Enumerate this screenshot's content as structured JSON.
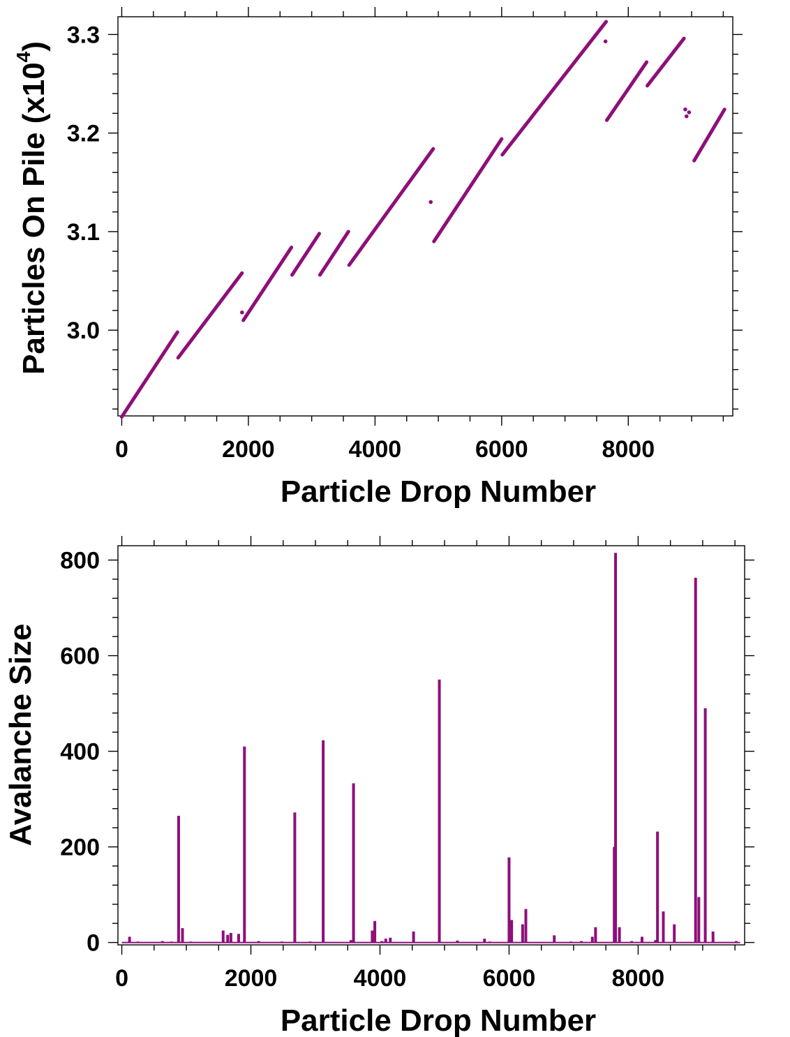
{
  "colors": {
    "series": "#8e0f7a",
    "axis": "#000000",
    "background": "#ffffff"
  },
  "chart_data": [
    {
      "type": "scatter",
      "xlabel": "Particle Drop Number",
      "ylabel": "Particles On Pile (x10",
      "ylabel_exponent": "4",
      "ylabel_close": ")",
      "xlim": [
        -60,
        9650
      ],
      "ylim": [
        2.913,
        3.318
      ],
      "grid": false,
      "x_ticks": [
        0,
        2000,
        4000,
        6000,
        8000
      ],
      "x_tick_labels": [
        "0",
        "2000",
        "4000",
        "6000",
        "8000"
      ],
      "y_ticks": [
        3.0,
        3.1,
        3.2,
        3.3
      ],
      "y_tick_labels": [
        "3.0",
        "3.1",
        "3.2",
        "3.3"
      ],
      "series": [
        {
          "segments": [
            [
              [
                0,
                2.912
              ],
              [
                880,
                2.998
              ]
            ],
            [
              [
                890,
                2.972
              ],
              [
                1900,
                3.058
              ]
            ],
            [
              [
                1920,
                3.01
              ],
              [
                2680,
                3.084
              ]
            ],
            [
              [
                2690,
                3.056
              ],
              [
                3120,
                3.098
              ]
            ],
            [
              [
                3130,
                3.056
              ],
              [
                3580,
                3.1
              ]
            ],
            [
              [
                3590,
                3.066
              ],
              [
                4920,
                3.184
              ]
            ],
            [
              [
                4930,
                3.09
              ],
              [
                6000,
                3.194
              ]
            ],
            [
              [
                6010,
                3.178
              ],
              [
                7650,
                3.313
              ]
            ],
            [
              [
                7660,
                3.213
              ],
              [
                8290,
                3.272
              ]
            ],
            [
              [
                8300,
                3.248
              ],
              [
                8880,
                3.296
              ]
            ],
            [
              [
                9040,
                3.172
              ],
              [
                9520,
                3.224
              ]
            ]
          ],
          "points": [
            [
              1900,
              3.018
            ],
            [
              4880,
              3.13
            ],
            [
              7640,
              3.293
            ],
            [
              8900,
              3.224
            ],
            [
              8920,
              3.217
            ],
            [
              8960,
              3.221
            ]
          ]
        }
      ]
    },
    {
      "type": "bar",
      "xlabel": "Particle Drop Number",
      "ylabel": "Avalanche Size",
      "xlim": [
        -60,
        9650
      ],
      "ylim": [
        -5,
        830
      ],
      "grid": false,
      "x_ticks": [
        0,
        2000,
        4000,
        6000,
        8000
      ],
      "x_tick_labels": [
        "0",
        "2000",
        "4000",
        "6000",
        "8000"
      ],
      "y_ticks": [
        0,
        200,
        400,
        600,
        800
      ],
      "y_tick_labels": [
        "0",
        "200",
        "400",
        "600",
        "800"
      ],
      "series": [
        {
          "x": [
            120,
            250,
            630,
            770,
            880,
            940,
            1070,
            1570,
            1640,
            1690,
            1810,
            1900,
            2120,
            2480,
            2680,
            2920,
            3120,
            3550,
            3590,
            3880,
            3920,
            4030,
            4090,
            4160,
            4520,
            4920,
            5200,
            5620,
            5700,
            6000,
            6040,
            6210,
            6260,
            6700,
            6960,
            7120,
            7290,
            7340,
            7630,
            7650,
            7710,
            7900,
            8060,
            8270,
            8300,
            8390,
            8560,
            8890,
            8940,
            9040,
            9160,
            9520
          ],
          "values": [
            12,
            2,
            3,
            2,
            265,
            30,
            2,
            25,
            16,
            20,
            18,
            410,
            3,
            2,
            272,
            2,
            423,
            5,
            333,
            25,
            45,
            3,
            8,
            10,
            23,
            550,
            4,
            8,
            2,
            178,
            47,
            38,
            70,
            15,
            2,
            3,
            12,
            32,
            200,
            815,
            32,
            3,
            12,
            5,
            232,
            65,
            38,
            763,
            95,
            490,
            23,
            3
          ]
        }
      ]
    }
  ]
}
